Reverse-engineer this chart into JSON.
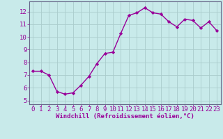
{
  "x": [
    0,
    1,
    2,
    3,
    4,
    5,
    6,
    7,
    8,
    9,
    10,
    11,
    12,
    13,
    14,
    15,
    16,
    17,
    18,
    19,
    20,
    21,
    22,
    23
  ],
  "y": [
    7.3,
    7.3,
    7.0,
    5.7,
    5.5,
    5.6,
    6.2,
    6.9,
    7.9,
    8.7,
    8.8,
    10.3,
    11.7,
    11.9,
    12.3,
    11.9,
    11.8,
    11.2,
    10.8,
    11.4,
    11.3,
    10.7,
    11.2,
    10.5
  ],
  "line_color": "#990099",
  "marker": "D",
  "marker_size": 2.2,
  "bg_color": "#c8eaea",
  "grid_color": "#aacccc",
  "ylabel_ticks": [
    5,
    6,
    7,
    8,
    9,
    10,
    11,
    12
  ],
  "xlabel": "Windchill (Refroidissement éolien,°C)",
  "xlim": [
    -0.5,
    23.5
  ],
  "ylim": [
    4.7,
    12.8
  ],
  "xlabel_fontsize": 6.5,
  "tick_fontsize": 6.5,
  "line_width": 1.0
}
